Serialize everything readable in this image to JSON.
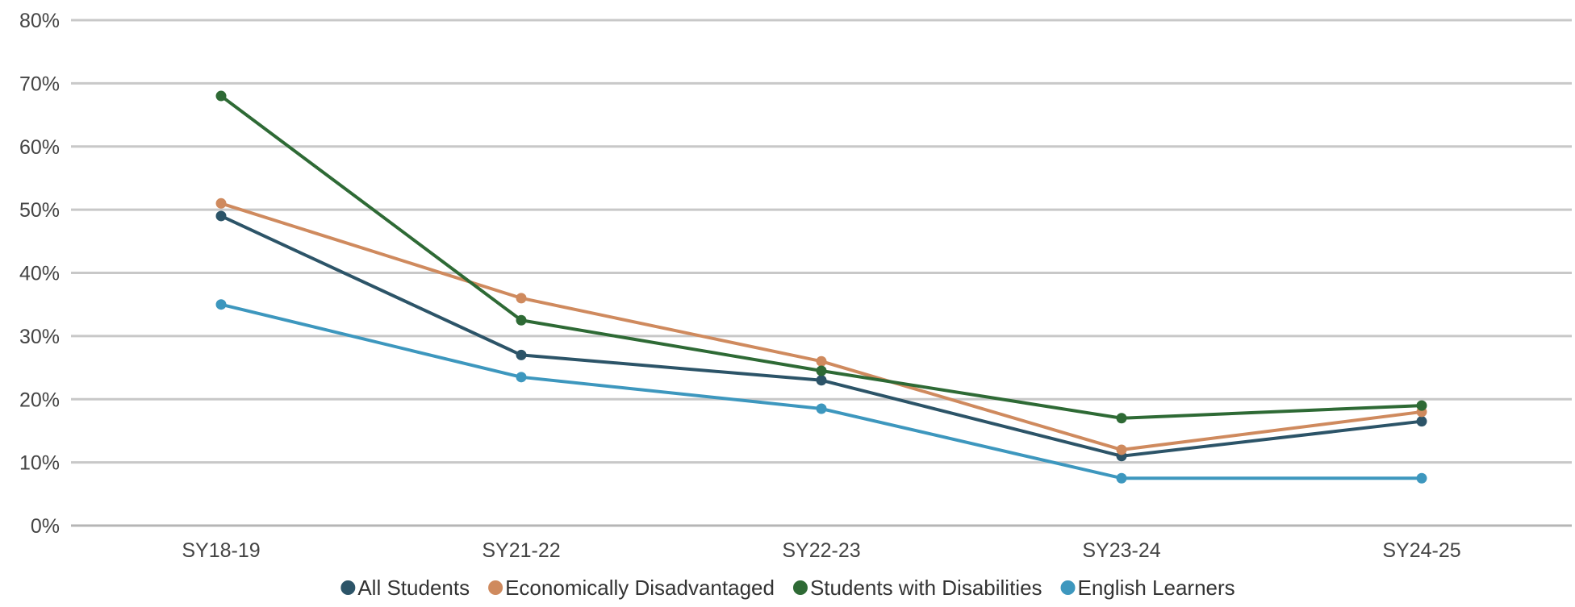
{
  "chart_data": {
    "type": "line",
    "title": "",
    "xlabel": "",
    "ylabel": "",
    "ylim": [
      0,
      80
    ],
    "yticks": [
      "0%",
      "10%",
      "20%",
      "30%",
      "40%",
      "50%",
      "60%",
      "70%",
      "80%"
    ],
    "categories": [
      "SY18-19",
      "SY21-22",
      "SY22-23",
      "SY23-24",
      "SY24-25"
    ],
    "grid": true,
    "legend_position": "bottom",
    "series": [
      {
        "name": "All Students",
        "color": "#2c5468",
        "values": [
          49,
          27,
          23,
          11,
          16.5
        ]
      },
      {
        "name": "Economically Disadvantaged",
        "color": "#cf8a5e",
        "values": [
          51,
          36,
          26,
          12,
          18
        ]
      },
      {
        "name": "Students with Disabilities",
        "color": "#2e6a35",
        "values": [
          68,
          32.5,
          24.5,
          17,
          19
        ]
      },
      {
        "name": "English Learners",
        "color": "#3d97be",
        "values": [
          35,
          23.5,
          18.5,
          7.5,
          7.5
        ]
      }
    ]
  }
}
